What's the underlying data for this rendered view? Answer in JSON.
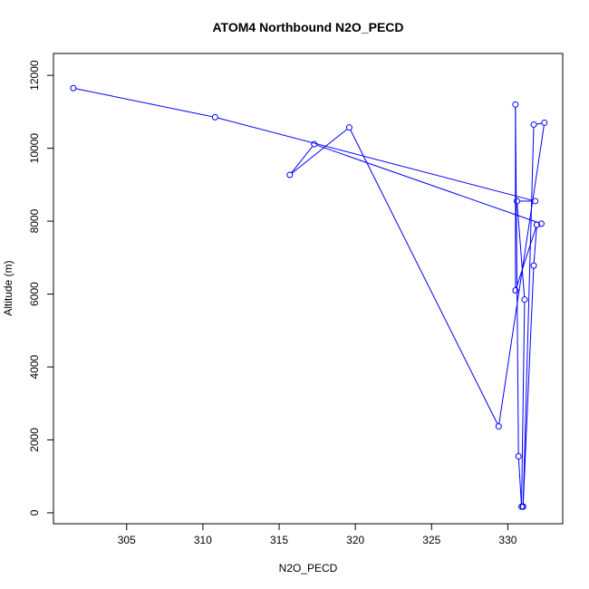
{
  "chart_data": {
    "type": "line",
    "title": "ATOM4 Northbound N2O_PECD",
    "xlabel": "N2O_PECD",
    "ylabel": "Altitude (m)",
    "xlim": [
      300.2,
      333.6
    ],
    "ylim": [
      -300,
      12600
    ],
    "x_ticks": [
      305,
      310,
      315,
      320,
      325,
      330
    ],
    "y_ticks": [
      0,
      2000,
      4000,
      6000,
      8000,
      10000,
      12000
    ],
    "series": [
      {
        "color": "#0000ff",
        "marker": "open-circle",
        "x": [
          301.5,
          310.8,
          331.8,
          330.6,
          331.1,
          330.9,
          330.7,
          330.5,
          330.5,
          331.9,
          331.7,
          331.0,
          331.0,
          331.7,
          332.4,
          329.4,
          319.6,
          315.7,
          317.3,
          332.2
        ],
        "y": [
          11650,
          10850,
          8550,
          8550,
          5850,
          170,
          1550,
          11200,
          6100,
          7900,
          6780,
          170,
          170,
          10650,
          10700,
          2370,
          10570,
          9270,
          10110,
          7930
        ]
      }
    ]
  }
}
